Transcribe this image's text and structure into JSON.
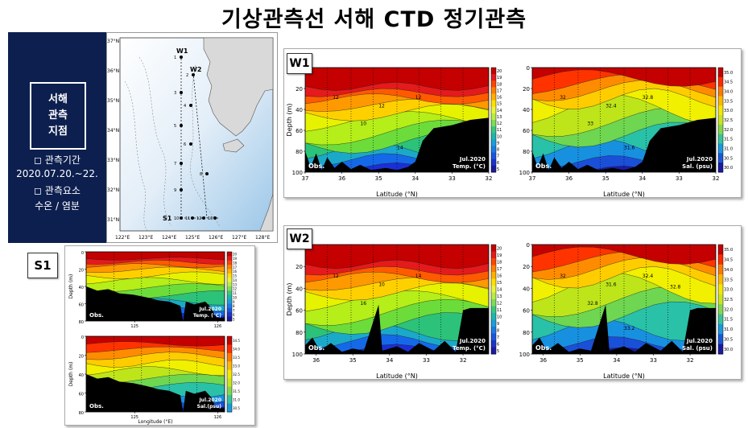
{
  "title": "기상관측선 서해 CTD 정기관측",
  "sidebar": {
    "station_label": [
      "서해",
      "관측",
      "지점"
    ],
    "period_label": "◻ 관측기간",
    "period_value": "2020.07.20.~22.",
    "elements_label": "◻ 관측요소",
    "elements_value": "수온 / 염분"
  },
  "map": {
    "lat_labels": [
      "37°N",
      "36°N",
      "35°N",
      "34°N",
      "33°N",
      "32°N",
      "31°N"
    ],
    "lon_labels": [
      "122°E",
      "123°E",
      "124°E",
      "125°E",
      "126°E",
      "127°E",
      "128°E"
    ],
    "line_labels": [
      "W1",
      "W2",
      "S1"
    ],
    "station_numbers": [
      "1",
      "2",
      "3",
      "4",
      "5",
      "6",
      "7",
      "8",
      "9",
      "10",
      "11",
      "12",
      "13"
    ]
  },
  "chart_data": [
    {
      "id": "W1-temp",
      "tag": "W1",
      "type": "heatmap",
      "xlabel": "Latitude (°N)",
      "ylabel": "Depth (m)",
      "xticks": [
        "37",
        "36",
        "35",
        "34",
        "33",
        "32"
      ],
      "yticks": [
        "0",
        "20",
        "40",
        "60",
        "80",
        "100"
      ],
      "left_note": "Obs.",
      "right_note": [
        "Jul.2020",
        "Temp. (°C)"
      ],
      "colorbar": [
        "20",
        "19",
        "18",
        "17",
        "16",
        "15",
        "14",
        "13",
        "12",
        "11",
        "10",
        "9",
        "8",
        "7",
        "6",
        "5"
      ],
      "contour_labels": [
        "12",
        "12",
        "12",
        "10",
        "14"
      ]
    },
    {
      "id": "W1-sal",
      "tag": "W1",
      "type": "heatmap",
      "xlabel": "Latitude (°N)",
      "ylabel": "",
      "xticks": [
        "37",
        "36",
        "35",
        "34",
        "33",
        "32"
      ],
      "yticks": [
        "0",
        "20",
        "40",
        "60",
        "80",
        "100"
      ],
      "left_note": "Obs.",
      "right_note": [
        "Jul.2020",
        "Sal. (psu)"
      ],
      "colorbar": [
        "35.0",
        "34.5",
        "34.0",
        "33.5",
        "33.0",
        "32.5",
        "32.0",
        "31.5",
        "31.0",
        "30.5",
        "30.0"
      ],
      "contour_labels": [
        "32",
        "32.4",
        "32.8",
        "33",
        "31.6"
      ]
    },
    {
      "id": "W2-temp",
      "tag": "W2",
      "type": "heatmap",
      "xlabel": "Latitude (°N)",
      "ylabel": "Depth (m)",
      "xticks": [
        "36",
        "35",
        "34",
        "33",
        "32"
      ],
      "yticks": [
        "0",
        "20",
        "40",
        "60",
        "80",
        "100"
      ],
      "left_note": "Obs.",
      "right_note": [
        "Jul.2020",
        "Temp. (°C)"
      ],
      "colorbar": [
        "20",
        "19",
        "18",
        "17",
        "16",
        "15",
        "14",
        "13",
        "12",
        "11",
        "10",
        "9",
        "8",
        "7",
        "6",
        "5"
      ],
      "contour_labels": [
        "12",
        "10",
        "14",
        "16"
      ]
    },
    {
      "id": "W2-sal",
      "tag": "W2",
      "type": "heatmap",
      "xlabel": "Latitude (°N)",
      "ylabel": "",
      "xticks": [
        "36",
        "35",
        "34",
        "33",
        "32"
      ],
      "yticks": [
        "0",
        "20",
        "40",
        "60",
        "80",
        "100"
      ],
      "left_note": "Obs.",
      "right_note": [
        "Jul.2020",
        "Sal. (psu)"
      ],
      "colorbar": [
        "35.0",
        "34.5",
        "34.0",
        "33.5",
        "33.0",
        "32.5",
        "32.0",
        "31.5",
        "31.0",
        "30.5",
        "30.0"
      ],
      "contour_labels": [
        "32",
        "31.6",
        "32.4",
        "32.8",
        "33.2",
        "32.8"
      ]
    },
    {
      "id": "S1-temp",
      "tag": "S1",
      "type": "heatmap",
      "xlabel": "",
      "ylabel": "Depth (m)",
      "xticks": [
        "125",
        "126"
      ],
      "yticks": [
        "0",
        "20",
        "40",
        "60",
        "80"
      ],
      "left_note": "Obs.",
      "right_note": [
        "Jul.2020",
        "Temp. (°C)"
      ],
      "colorbar": [
        "20",
        "19",
        "18",
        "17",
        "16",
        "15",
        "14",
        "13",
        "12",
        "11",
        "10",
        "9",
        "8",
        "7",
        "6",
        "5"
      ],
      "contour_labels": []
    },
    {
      "id": "S1-sal",
      "tag": "S1",
      "type": "heatmap",
      "xlabel": "Longitude (°E)",
      "ylabel": "Depth (m)",
      "xticks": [
        "125",
        "126"
      ],
      "yticks": [
        "0",
        "20",
        "40",
        "60",
        "80"
      ],
      "left_note": "Obs.",
      "right_note": [
        "Jul.2020",
        "Sal.(psu)"
      ],
      "colorbar": [
        "34.5",
        "34.0",
        "33.5",
        "33.0",
        "32.5",
        "32.0",
        "31.5",
        "31.0",
        "30.5"
      ],
      "contour_labels": []
    }
  ]
}
